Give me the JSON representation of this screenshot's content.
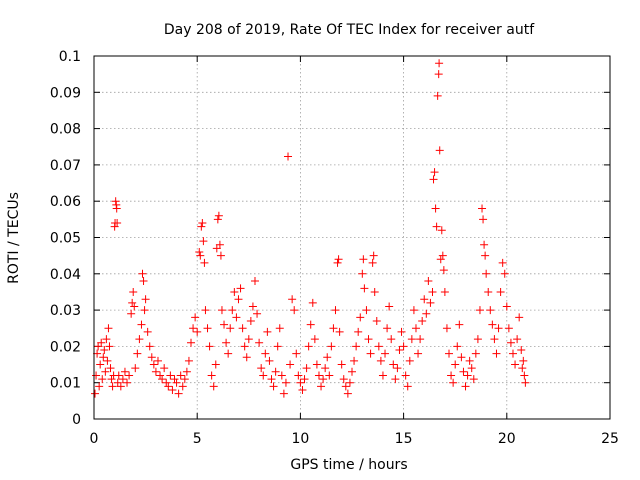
{
  "chart_data": {
    "type": "scatter",
    "title": "Day 208 of 2019, Rate Of TEC Index for receiver autf",
    "xlabel": "GPS time / hours",
    "ylabel": "ROTI / TECUs",
    "xlim": [
      0,
      25
    ],
    "ylim": [
      0,
      0.1
    ],
    "x_ticks": [
      0,
      5,
      10,
      15,
      20,
      25
    ],
    "x_tick_labels": [
      "0",
      "5",
      "10",
      "15",
      "20",
      "25"
    ],
    "y_ticks": [
      0,
      0.01,
      0.02,
      0.03,
      0.04,
      0.05,
      0.06,
      0.07,
      0.08,
      0.09,
      0.1
    ],
    "y_tick_labels": [
      "0",
      "0.01",
      "0.02",
      "0.03",
      "0.04",
      "0.05",
      "0.06",
      "0.07",
      "0.08",
      "0.09",
      "0.1"
    ],
    "grid": true,
    "marker": "+",
    "series": [
      {
        "color": "#ff0000",
        "points": [
          [
            0.05,
            0.007
          ],
          [
            0.1,
            0.012
          ],
          [
            0.15,
            0.018
          ],
          [
            0.2,
            0.02
          ],
          [
            0.25,
            0.009
          ],
          [
            0.3,
            0.015
          ],
          [
            0.35,
            0.021
          ],
          [
            0.4,
            0.011
          ],
          [
            0.45,
            0.017
          ],
          [
            0.5,
            0.019
          ],
          [
            0.55,
            0.013
          ],
          [
            0.6,
            0.022
          ],
          [
            0.65,
            0.016
          ],
          [
            0.7,
            0.025
          ],
          [
            0.75,
            0.02
          ],
          [
            0.8,
            0.014
          ],
          [
            0.85,
            0.011
          ],
          [
            0.9,
            0.009
          ],
          [
            0.95,
            0.012
          ],
          [
            1.0,
            0.053
          ],
          [
            1.02,
            0.054
          ],
          [
            1.05,
            0.06
          ],
          [
            1.08,
            0.059
          ],
          [
            1.1,
            0.058
          ],
          [
            1.12,
            0.054
          ],
          [
            1.15,
            0.01
          ],
          [
            1.2,
            0.012
          ],
          [
            1.3,
            0.009
          ],
          [
            1.4,
            0.011
          ],
          [
            1.5,
            0.013
          ],
          [
            1.6,
            0.01
          ],
          [
            1.7,
            0.012
          ],
          [
            1.8,
            0.029
          ],
          [
            1.85,
            0.032
          ],
          [
            1.9,
            0.035
          ],
          [
            1.95,
            0.031
          ],
          [
            2.0,
            0.014
          ],
          [
            2.1,
            0.018
          ],
          [
            2.2,
            0.022
          ],
          [
            2.3,
            0.026
          ],
          [
            2.35,
            0.04
          ],
          [
            2.4,
            0.038
          ],
          [
            2.45,
            0.03
          ],
          [
            2.5,
            0.033
          ],
          [
            2.6,
            0.024
          ],
          [
            2.7,
            0.02
          ],
          [
            2.8,
            0.017
          ],
          [
            2.9,
            0.015
          ],
          [
            3.0,
            0.013
          ],
          [
            3.1,
            0.016
          ],
          [
            3.2,
            0.012
          ],
          [
            3.3,
            0.011
          ],
          [
            3.4,
            0.014
          ],
          [
            3.5,
            0.01
          ],
          [
            3.6,
            0.009
          ],
          [
            3.7,
            0.012
          ],
          [
            3.8,
            0.008
          ],
          [
            3.9,
            0.011
          ],
          [
            4.0,
            0.01
          ],
          [
            4.1,
            0.007
          ],
          [
            4.2,
            0.012
          ],
          [
            4.3,
            0.009
          ],
          [
            4.4,
            0.011
          ],
          [
            4.5,
            0.013
          ],
          [
            4.6,
            0.016
          ],
          [
            4.7,
            0.021
          ],
          [
            4.8,
            0.025
          ],
          [
            4.9,
            0.028
          ],
          [
            5.0,
            0.024
          ],
          [
            5.1,
            0.046
          ],
          [
            5.15,
            0.045
          ],
          [
            5.2,
            0.053
          ],
          [
            5.25,
            0.054
          ],
          [
            5.3,
            0.049
          ],
          [
            5.35,
            0.043
          ],
          [
            5.4,
            0.03
          ],
          [
            5.5,
            0.025
          ],
          [
            5.6,
            0.02
          ],
          [
            5.7,
            0.012
          ],
          [
            5.8,
            0.009
          ],
          [
            5.9,
            0.015
          ],
          [
            5.95,
            0.047
          ],
          [
            6.0,
            0.055
          ],
          [
            6.05,
            0.056
          ],
          [
            6.1,
            0.048
          ],
          [
            6.15,
            0.045
          ],
          [
            6.2,
            0.03
          ],
          [
            6.3,
            0.026
          ],
          [
            6.4,
            0.021
          ],
          [
            6.5,
            0.018
          ],
          [
            6.6,
            0.025
          ],
          [
            6.7,
            0.03
          ],
          [
            6.8,
            0.035
          ],
          [
            6.9,
            0.028
          ],
          [
            7.0,
            0.033
          ],
          [
            7.1,
            0.036
          ],
          [
            7.2,
            0.025
          ],
          [
            7.3,
            0.02
          ],
          [
            7.4,
            0.017
          ],
          [
            7.5,
            0.022
          ],
          [
            7.6,
            0.027
          ],
          [
            7.7,
            0.031
          ],
          [
            7.8,
            0.038
          ],
          [
            7.9,
            0.029
          ],
          [
            8.0,
            0.021
          ],
          [
            8.1,
            0.014
          ],
          [
            8.2,
            0.012
          ],
          [
            8.3,
            0.018
          ],
          [
            8.4,
            0.024
          ],
          [
            8.5,
            0.016
          ],
          [
            8.6,
            0.011
          ],
          [
            8.7,
            0.009
          ],
          [
            8.8,
            0.013
          ],
          [
            8.9,
            0.02
          ],
          [
            9.0,
            0.025
          ],
          [
            9.1,
            0.012
          ],
          [
            9.2,
            0.007
          ],
          [
            9.3,
            0.01
          ],
          [
            9.4,
            0.0723
          ],
          [
            9.5,
            0.015
          ],
          [
            9.6,
            0.033
          ],
          [
            9.7,
            0.03
          ],
          [
            9.8,
            0.018
          ],
          [
            9.9,
            0.012
          ],
          [
            10.0,
            0.01
          ],
          [
            10.1,
            0.008
          ],
          [
            10.2,
            0.011
          ],
          [
            10.3,
            0.014
          ],
          [
            10.4,
            0.02
          ],
          [
            10.5,
            0.026
          ],
          [
            10.6,
            0.032
          ],
          [
            10.7,
            0.022
          ],
          [
            10.8,
            0.015
          ],
          [
            10.9,
            0.012
          ],
          [
            11.0,
            0.009
          ],
          [
            11.1,
            0.011
          ],
          [
            11.2,
            0.014
          ],
          [
            11.3,
            0.017
          ],
          [
            11.4,
            0.012
          ],
          [
            11.5,
            0.02
          ],
          [
            11.6,
            0.025
          ],
          [
            11.7,
            0.03
          ],
          [
            11.8,
            0.043
          ],
          [
            11.85,
            0.044
          ],
          [
            11.9,
            0.024
          ],
          [
            12.0,
            0.015
          ],
          [
            12.1,
            0.011
          ],
          [
            12.2,
            0.009
          ],
          [
            12.3,
            0.007
          ],
          [
            12.4,
            0.01
          ],
          [
            12.5,
            0.013
          ],
          [
            12.6,
            0.016
          ],
          [
            12.7,
            0.02
          ],
          [
            12.8,
            0.024
          ],
          [
            12.9,
            0.028
          ],
          [
            13.0,
            0.04
          ],
          [
            13.05,
            0.044
          ],
          [
            13.1,
            0.036
          ],
          [
            13.2,
            0.03
          ],
          [
            13.3,
            0.022
          ],
          [
            13.4,
            0.018
          ],
          [
            13.5,
            0.043
          ],
          [
            13.55,
            0.045
          ],
          [
            13.6,
            0.035
          ],
          [
            13.7,
            0.027
          ],
          [
            13.8,
            0.02
          ],
          [
            13.9,
            0.016
          ],
          [
            14.0,
            0.012
          ],
          [
            14.1,
            0.018
          ],
          [
            14.2,
            0.025
          ],
          [
            14.3,
            0.031
          ],
          [
            14.4,
            0.022
          ],
          [
            14.5,
            0.015
          ],
          [
            14.6,
            0.011
          ],
          [
            14.7,
            0.014
          ],
          [
            14.8,
            0.019
          ],
          [
            14.9,
            0.024
          ],
          [
            15.0,
            0.02
          ],
          [
            15.1,
            0.012
          ],
          [
            15.2,
            0.009
          ],
          [
            15.3,
            0.016
          ],
          [
            15.4,
            0.022
          ],
          [
            15.5,
            0.03
          ],
          [
            15.6,
            0.025
          ],
          [
            15.7,
            0.018
          ],
          [
            15.8,
            0.022
          ],
          [
            15.9,
            0.027
          ],
          [
            16.0,
            0.033
          ],
          [
            16.1,
            0.029
          ],
          [
            16.2,
            0.038
          ],
          [
            16.3,
            0.032
          ],
          [
            16.4,
            0.035
          ],
          [
            16.45,
            0.066
          ],
          [
            16.5,
            0.068
          ],
          [
            16.55,
            0.058
          ],
          [
            16.6,
            0.053
          ],
          [
            16.65,
            0.089
          ],
          [
            16.7,
            0.095
          ],
          [
            16.72,
            0.098
          ],
          [
            16.75,
            0.074
          ],
          [
            16.8,
            0.044
          ],
          [
            16.85,
            0.052
          ],
          [
            16.9,
            0.045
          ],
          [
            16.95,
            0.041
          ],
          [
            17.0,
            0.035
          ],
          [
            17.1,
            0.025
          ],
          [
            17.2,
            0.018
          ],
          [
            17.3,
            0.012
          ],
          [
            17.4,
            0.01
          ],
          [
            17.5,
            0.015
          ],
          [
            17.6,
            0.02
          ],
          [
            17.7,
            0.026
          ],
          [
            17.8,
            0.017
          ],
          [
            17.9,
            0.013
          ],
          [
            18.0,
            0.009
          ],
          [
            18.1,
            0.012
          ],
          [
            18.2,
            0.016
          ],
          [
            18.3,
            0.014
          ],
          [
            18.4,
            0.011
          ],
          [
            18.5,
            0.018
          ],
          [
            18.6,
            0.022
          ],
          [
            18.7,
            0.03
          ],
          [
            18.8,
            0.058
          ],
          [
            18.85,
            0.055
          ],
          [
            18.9,
            0.048
          ],
          [
            18.95,
            0.045
          ],
          [
            19.0,
            0.04
          ],
          [
            19.1,
            0.035
          ],
          [
            19.2,
            0.03
          ],
          [
            19.3,
            0.026
          ],
          [
            19.4,
            0.022
          ],
          [
            19.5,
            0.018
          ],
          [
            19.6,
            0.025
          ],
          [
            19.7,
            0.035
          ],
          [
            19.8,
            0.043
          ],
          [
            19.9,
            0.04
          ],
          [
            20.0,
            0.031
          ],
          [
            20.1,
            0.025
          ],
          [
            20.2,
            0.021
          ],
          [
            20.3,
            0.018
          ],
          [
            20.4,
            0.015
          ],
          [
            20.5,
            0.022
          ],
          [
            20.6,
            0.028
          ],
          [
            20.7,
            0.019
          ],
          [
            20.75,
            0.014
          ],
          [
            20.8,
            0.016
          ],
          [
            20.85,
            0.012
          ],
          [
            20.9,
            0.01
          ]
        ]
      }
    ]
  }
}
